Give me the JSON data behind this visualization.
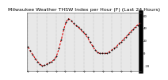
{
  "title": "Milwaukee Weather THSW Index per Hour (F) (Last 24 Hours)",
  "y_values": [
    10,
    4,
    -2,
    -8,
    -13,
    -17,
    -20,
    -19,
    -17,
    -15,
    -13,
    -10,
    -4,
    8,
    22,
    38,
    50,
    55,
    52,
    48,
    44,
    42,
    38,
    34,
    30,
    25,
    18,
    12,
    6,
    2,
    0,
    0,
    0,
    0,
    2,
    5,
    8,
    10,
    15,
    18,
    22,
    26,
    30,
    34,
    38,
    42,
    45,
    48
  ],
  "ylim": [
    -28,
    65
  ],
  "xlim_start": 0,
  "line_color": "#dd0000",
  "marker_color": "#111111",
  "bg_color": "#ffffff",
  "plot_bg_color": "#e8e8e8",
  "grid_color": "#888888",
  "title_fontsize": 4.5,
  "ytick_labels": [
    "60",
    "40",
    "20",
    "0",
    "-20"
  ],
  "ytick_vals": [
    60,
    40,
    20,
    0,
    -20
  ],
  "num_points": 48,
  "num_gridlines": 13
}
